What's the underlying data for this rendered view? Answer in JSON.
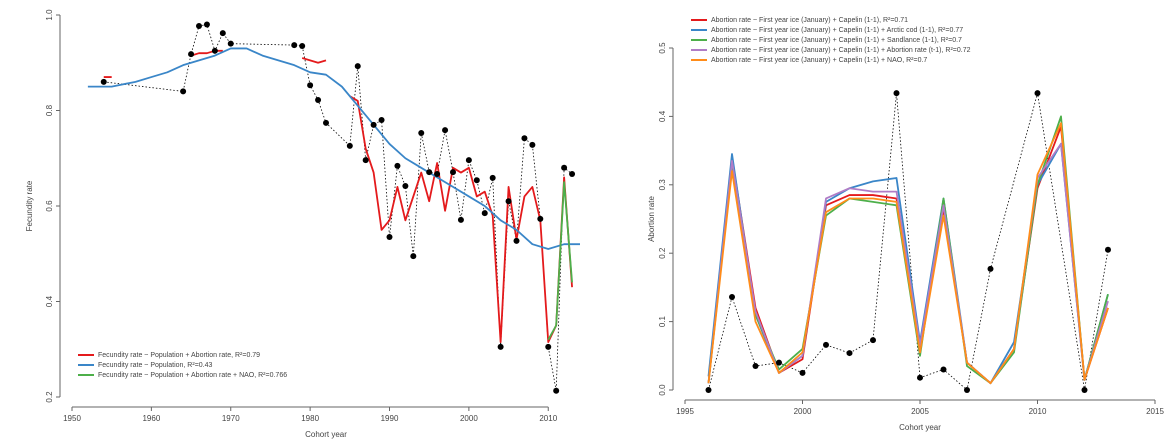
{
  "chart_data": [
    {
      "type": "line",
      "x_label": "Cohort year",
      "y_label": "Fecundity rate",
      "xlim": [
        1950,
        2014
      ],
      "xticks": [
        1950,
        1960,
        1970,
        1980,
        1990,
        2000,
        2010
      ],
      "ylim": [
        0.2,
        1.0
      ],
      "yticks": [
        0.2,
        0.4,
        0.6,
        0.8,
        {
          "value": 1.0,
          "label": "1.0"
        }
      ],
      "legend": "bottom-left",
      "observed": {
        "color": "#000000",
        "x": [
          1954,
          1964,
          1965,
          1966,
          1967,
          1968,
          1969,
          1970,
          1978,
          1979,
          1980,
          1981,
          1982,
          1985,
          1986,
          1987,
          1988,
          1989,
          1990,
          1991,
          1992,
          1993,
          1994,
          1995,
          1996,
          1997,
          1998,
          1999,
          2000,
          2001,
          2002,
          2003,
          2004,
          2005,
          2006,
          2007,
          2008,
          2009,
          2010,
          2011,
          2012,
          2013
        ],
        "values": [
          0.86,
          0.84,
          0.918,
          0.977,
          0.98,
          0.925,
          0.962,
          0.94,
          0.937,
          0.935,
          0.853,
          0.822,
          0.774,
          0.726,
          0.893,
          0.696,
          0.77,
          0.78,
          0.535,
          0.684,
          0.642,
          0.495,
          0.753,
          0.671,
          0.667,
          0.759,
          0.671,
          0.571,
          0.696,
          0.654,
          0.585,
          0.659,
          0.305,
          0.61,
          0.527,
          0.742,
          0.728,
          0.573,
          0.305,
          0.213,
          0.68,
          0.667
        ]
      },
      "series": [
        {
          "name": "Fecundity rate ~ Population + Abortion rate, R²=0.79",
          "color": "#e41a1c",
          "x": [
            1954,
            1955,
            1956,
            1965,
            1966,
            1967,
            1968,
            1969,
            1970,
            1979,
            1980,
            1981,
            1982,
            1983,
            1985,
            1986,
            1987,
            1988,
            1989,
            1990,
            1991,
            1992,
            1993,
            1994,
            1995,
            1996,
            1997,
            1998,
            1999,
            2000,
            2001,
            2002,
            2003,
            2004,
            2005,
            2006,
            2007,
            2008,
            2009,
            2010,
            2011,
            2012,
            2013
          ],
          "values": [
            0.87,
            0.87,
            null,
            0.915,
            0.92,
            0.92,
            0.925,
            0.925,
            null,
            0.91,
            0.905,
            0.9,
            0.905,
            null,
            0.83,
            0.82,
            0.72,
            0.67,
            0.55,
            0.57,
            0.64,
            0.57,
            0.62,
            0.67,
            0.61,
            0.69,
            0.59,
            0.68,
            0.67,
            0.68,
            0.62,
            0.63,
            0.58,
            0.315,
            0.64,
            0.53,
            0.62,
            0.64,
            0.57,
            0.315,
            0.35,
            0.66,
            0.43
          ]
        },
        {
          "name": "Fecundity rate ~ Population, R²=0.43",
          "color": "#3a86c8",
          "x": [
            1952,
            1955,
            1958,
            1960,
            1962,
            1964,
            1966,
            1968,
            1970,
            1972,
            1974,
            1976,
            1978,
            1980,
            1982,
            1984,
            1986,
            1988,
            1990,
            1992,
            1994,
            1996,
            1998,
            2000,
            2002,
            2004,
            2006,
            2008,
            2010,
            2012,
            2014
          ],
          "values": [
            0.85,
            0.85,
            0.86,
            0.87,
            0.88,
            0.895,
            0.905,
            0.915,
            0.93,
            0.93,
            0.915,
            0.905,
            0.895,
            0.88,
            0.875,
            0.85,
            0.81,
            0.77,
            0.73,
            0.7,
            0.68,
            0.66,
            0.64,
            0.62,
            0.6,
            0.57,
            0.55,
            0.52,
            0.51,
            0.52,
            0.52
          ]
        },
        {
          "name": "Fecundity rate ~ Population + Abortion rate + NAO, R²=0.766",
          "color": "#4daf4a",
          "x": [
            2010,
            2011,
            2012,
            2013
          ],
          "values": [
            0.32,
            0.35,
            0.65,
            0.44
          ]
        }
      ]
    },
    {
      "type": "line",
      "x_label": "Cohort year",
      "y_label": "Abortion rate",
      "xlim": [
        1995,
        2015
      ],
      "xticks": [
        1995,
        2000,
        2005,
        2010,
        2015
      ],
      "ylim": [
        0,
        0.5
      ],
      "yticks": [
        {
          "value": 0,
          "label": "0.0"
        },
        0.1,
        0.2,
        0.3,
        0.4,
        0.5
      ],
      "legend": "top-left",
      "observed": {
        "color": "#000000",
        "x": [
          1996,
          1997,
          1998,
          1999,
          2000,
          2001,
          2002,
          2003,
          2004,
          2005,
          2006,
          2007,
          2008,
          2010,
          2012,
          2013
        ],
        "values": [
          0.0,
          0.136,
          0.035,
          0.04,
          0.025,
          0.066,
          0.054,
          0.073,
          0.434,
          0.018,
          0.03,
          0.0,
          0.177,
          0.434,
          0.0,
          0.205
        ]
      },
      "series": [
        {
          "name": "Abortion rate ~ First year ice (January) + Capelin (1-1), R²=0.71",
          "color": "#e41a1c",
          "x": [
            1996,
            1997,
            1998,
            1999,
            2000,
            2001,
            2002,
            2003,
            2004,
            2005,
            2006,
            2007,
            2008,
            2009,
            2010,
            2011,
            2012,
            2013
          ],
          "values": [
            0.01,
            0.34,
            0.12,
            0.025,
            0.045,
            0.27,
            0.285,
            0.285,
            0.28,
            0.06,
            0.265,
            0.04,
            0.01,
            0.06,
            0.295,
            0.385,
            0.015,
            0.12
          ]
        },
        {
          "name": "Abortion rate ~ First year ice (January) + Capelin (1-1) + Arctic cod (1-1), R²=0.77",
          "color": "#3a86c8",
          "x": [
            1996,
            1997,
            1998,
            1999,
            2000,
            2001,
            2002,
            2003,
            2004,
            2005,
            2006,
            2007,
            2008,
            2009,
            2010,
            2011,
            2012,
            2013
          ],
          "values": [
            0.02,
            0.345,
            0.11,
            0.025,
            0.05,
            0.275,
            0.295,
            0.305,
            0.31,
            0.07,
            0.28,
            0.04,
            0.01,
            0.07,
            0.3,
            0.36,
            0.015,
            0.14
          ]
        },
        {
          "name": "Abortion rate ~ First year ice (January) + Capelin (1-1) + Sandlance (1-1), R²=0.7",
          "color": "#4daf4a",
          "x": [
            1996,
            1997,
            1998,
            1999,
            2000,
            2001,
            2002,
            2003,
            2004,
            2005,
            2006,
            2007,
            2008,
            2009,
            2010,
            2011,
            2012,
            2013
          ],
          "values": [
            0.01,
            0.33,
            0.11,
            0.03,
            0.06,
            0.255,
            0.28,
            0.275,
            0.27,
            0.05,
            0.28,
            0.035,
            0.01,
            0.055,
            0.3,
            0.4,
            0.015,
            0.14
          ]
        },
        {
          "name": "Abortion rate ~ First year ice (January) + Capelin (1-1) + Abortion rate (t-1), R²=0.72",
          "color": "#b07cc6",
          "x": [
            1996,
            1997,
            1998,
            1999,
            2000,
            2001,
            2002,
            2003,
            2004,
            2005,
            2006,
            2007,
            2008,
            2009,
            2010,
            2011,
            2012,
            2013
          ],
          "values": [
            0.01,
            0.335,
            0.115,
            0.025,
            0.05,
            0.28,
            0.295,
            0.29,
            0.29,
            0.065,
            0.27,
            0.04,
            0.01,
            0.06,
            0.31,
            0.36,
            0.015,
            0.13
          ]
        },
        {
          "name": "Abortion rate ~ First year ice (January) + Capelin (1-1) + NAO, R²=0.7",
          "color": "#ff8c1a",
          "x": [
            1996,
            1997,
            1998,
            1999,
            2000,
            2001,
            2002,
            2003,
            2004,
            2005,
            2006,
            2007,
            2008,
            2009,
            2010,
            2011,
            2012,
            2013
          ],
          "values": [
            0.01,
            0.32,
            0.1,
            0.025,
            0.055,
            0.26,
            0.28,
            0.28,
            0.275,
            0.055,
            0.255,
            0.04,
            0.01,
            0.06,
            0.315,
            0.39,
            0.015,
            0.12
          ]
        }
      ]
    }
  ]
}
